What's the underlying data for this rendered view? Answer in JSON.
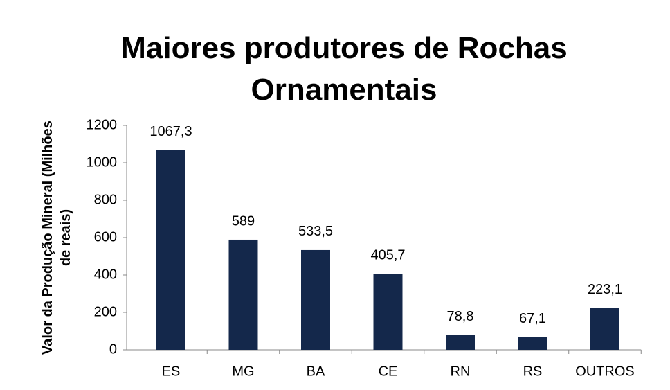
{
  "chart_data": {
    "type": "bar",
    "title": "Maiores produtores de Rochas Ornamentais",
    "ylabel": "Valor da Produção Mineral (Milhões de reais)",
    "categories": [
      "ES",
      "MG",
      "BA",
      "CE",
      "RN",
      "RS",
      "OUTROS"
    ],
    "values": [
      1067.3,
      589,
      533.5,
      405.7,
      78.8,
      67.1,
      223.1
    ],
    "value_labels": [
      "1067,3",
      "589",
      "533,5",
      "405,7",
      "78,8",
      "67,1",
      "223,1"
    ],
    "color": "#14284b",
    "ylim": [
      0,
      1200
    ],
    "yticks": [
      0,
      200,
      400,
      600,
      800,
      1000,
      1200
    ],
    "grid": false
  }
}
